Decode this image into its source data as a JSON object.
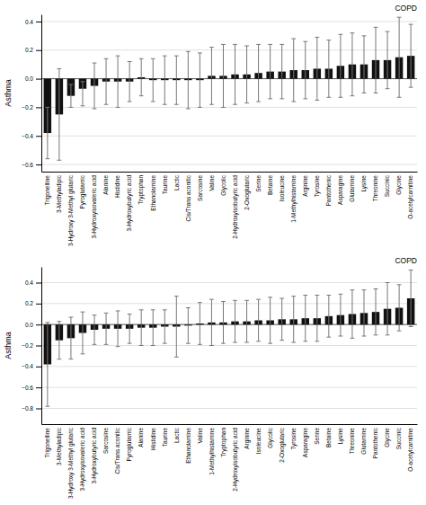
{
  "chart_data": [
    {
      "type": "bar",
      "y_label": "Asthma",
      "annotations": [
        "COPD"
      ],
      "categories": [
        "Trigonelline",
        "3-Methyladipic",
        "3-Hydroxy 3-Methyl glutaric",
        "Pyroglutamic",
        "3-Hydroxyisovaleric acid",
        "Alanine",
        "Histidine",
        "3-Hydroxybutyric acid",
        "Tryptophan",
        "Ethanolamine",
        "Taurine",
        "Lactic",
        "Cis/Trans aconitic",
        "Sarcosine",
        "Valine",
        "Glycolic",
        "2-Hydroxyisobutyric acid",
        "2-Oxoglutaric",
        "Serine",
        "Betaine",
        "Isoleucine",
        "1-Methylhistamine",
        "Arginine",
        "Tyrosine",
        "Pantothenic",
        "Asparagine",
        "Glutamine",
        "Lysine",
        "Threonine",
        "Succinic",
        "Glycine",
        "O-acetylcarnitine"
      ],
      "values": [
        -0.38,
        -0.25,
        -0.12,
        -0.07,
        -0.05,
        -0.02,
        -0.02,
        -0.02,
        0.01,
        -0.01,
        -0.01,
        -0.01,
        -0.01,
        -0.01,
        0.02,
        0.02,
        0.03,
        0.03,
        0.04,
        0.05,
        0.05,
        0.06,
        0.06,
        0.07,
        0.07,
        0.09,
        0.1,
        0.1,
        0.13,
        0.13,
        0.15,
        0.16
      ],
      "err_minus": [
        0.18,
        0.32,
        0.08,
        0.12,
        0.16,
        0.16,
        0.18,
        0.14,
        0.13,
        0.15,
        0.17,
        0.17,
        0.2,
        0.19,
        0.2,
        0.22,
        0.21,
        0.2,
        0.2,
        0.19,
        0.19,
        0.22,
        0.2,
        0.22,
        0.2,
        0.22,
        0.22,
        0.2,
        0.23,
        0.2,
        0.28,
        0.22
      ],
      "err_plus": [
        0.18,
        0.32,
        0.08,
        0.05,
        0.16,
        0.16,
        0.18,
        0.14,
        0.13,
        0.15,
        0.17,
        0.17,
        0.2,
        0.19,
        0.2,
        0.22,
        0.21,
        0.2,
        0.2,
        0.19,
        0.19,
        0.22,
        0.2,
        0.22,
        0.2,
        0.22,
        0.22,
        0.2,
        0.23,
        0.2,
        0.28,
        0.22
      ],
      "color": "#111111",
      "ylim": [
        -0.65,
        0.45
      ],
      "yticks": [
        {
          "value": -0.6,
          "label": "−0.6"
        },
        {
          "value": -0.4,
          "label": "−0.4"
        },
        {
          "value": -0.2,
          "label": "−0.2"
        },
        {
          "value": 0.0,
          "label": "0.0"
        },
        0.2,
        0.4
      ],
      "grid": true
    },
    {
      "type": "bar",
      "y_label": "Asthma",
      "annotations": [
        "COPD"
      ],
      "categories": [
        "Trigonelline",
        "3-Methyladipic",
        "3-Hydroxy 3-Methyl glutaric",
        "3-Hydroxyisovaleric acid",
        "3-Hydroxybutyric acid",
        "Sarcosine",
        "Cis/Trans aconitic",
        "Pyroglutamic",
        "Alanine",
        "Histidine",
        "Taurine",
        "Lactic",
        "Ethanolamine",
        "Valine",
        "1-Methylhistamine",
        "Tryptophan",
        "2-Hydroxyisobutyric acid",
        "Arginine",
        "Isoleucine",
        "Glycolic",
        "2-Oxoglutaric",
        "Tyrosine",
        "Asparagine",
        "Serine",
        "Betaine",
        "Lysine",
        "Threonine",
        "Glutamine",
        "Pantothenic",
        "Glycine",
        "Succinic",
        "O-acetylcarnitine"
      ],
      "values": [
        -0.38,
        -0.15,
        -0.13,
        -0.08,
        -0.05,
        -0.04,
        -0.04,
        -0.04,
        -0.03,
        -0.03,
        -0.02,
        -0.02,
        -0.01,
        0.01,
        0.02,
        0.02,
        0.03,
        0.03,
        0.04,
        0.04,
        0.05,
        0.05,
        0.06,
        0.06,
        0.08,
        0.09,
        0.1,
        0.11,
        0.12,
        0.15,
        0.16,
        0.25
      ],
      "err_minus": [
        0.4,
        0.18,
        0.2,
        0.2,
        0.14,
        0.15,
        0.17,
        0.14,
        0.17,
        0.17,
        0.16,
        0.29,
        0.17,
        0.2,
        0.22,
        0.2,
        0.2,
        0.2,
        0.2,
        0.22,
        0.2,
        0.22,
        0.22,
        0.22,
        0.2,
        0.2,
        0.23,
        0.22,
        0.22,
        0.25,
        0.22,
        0.27
      ],
      "err_plus": [
        0.4,
        0.18,
        0.2,
        0.2,
        0.14,
        0.15,
        0.17,
        0.14,
        0.17,
        0.17,
        0.16,
        0.29,
        0.17,
        0.2,
        0.22,
        0.2,
        0.2,
        0.2,
        0.2,
        0.22,
        0.2,
        0.22,
        0.22,
        0.22,
        0.2,
        0.2,
        0.23,
        0.22,
        0.22,
        0.25,
        0.22,
        0.27
      ],
      "color": "#111111",
      "ylim": [
        -0.95,
        0.55
      ],
      "yticks": [
        {
          "value": -0.8,
          "label": "−0.8"
        },
        {
          "value": -0.6,
          "label": "−0.6"
        },
        {
          "value": -0.4,
          "label": "−0.4"
        },
        {
          "value": -0.2,
          "label": "−0.2"
        },
        {
          "value": 0.0,
          "label": "0.0"
        },
        0.2,
        0.4
      ],
      "grid": true
    }
  ]
}
